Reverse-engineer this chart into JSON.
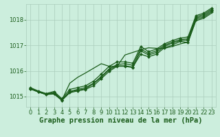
{
  "background_color": "#cceedd",
  "plot_bg_color": "#cceedd",
  "grid_color": "#aaccbb",
  "line_color": "#1a5c1a",
  "marker_color": "#1a5c1a",
  "xlabel": "Graphe pression niveau de la mer (hPa)",
  "xlabel_fontsize": 7.5,
  "tick_fontsize": 6,
  "xlim": [
    -0.5,
    23.5
  ],
  "ylim": [
    1014.6,
    1018.6
  ],
  "yticks": [
    1015,
    1016,
    1017,
    1018
  ],
  "xticks": [
    0,
    1,
    2,
    3,
    4,
    5,
    6,
    7,
    8,
    9,
    10,
    11,
    12,
    13,
    14,
    15,
    16,
    17,
    18,
    19,
    20,
    21,
    22,
    23
  ],
  "series": [
    {
      "y": [
        1015.3,
        1015.2,
        1015.1,
        1015.15,
        1014.87,
        1015.18,
        1015.25,
        1015.3,
        1015.5,
        1015.75,
        1016.05,
        1016.2,
        1016.2,
        1016.15,
        1016.65,
        1016.55,
        1016.65,
        1016.9,
        1017.0,
        1017.15,
        1017.1,
        1018.0,
        1018.1,
        1018.3
      ],
      "lw": 0.9,
      "marker": "D",
      "ms": 2.0,
      "has_markers": true
    },
    {
      "y": [
        1015.3,
        1015.18,
        1015.08,
        1015.1,
        1014.85,
        1015.15,
        1015.22,
        1015.28,
        1015.42,
        1015.7,
        1015.98,
        1016.18,
        1016.18,
        1016.13,
        1016.78,
        1016.62,
        1016.72,
        1016.95,
        1017.08,
        1017.18,
        1017.2,
        1018.05,
        1018.15,
        1018.35
      ],
      "lw": 0.9,
      "marker": "D",
      "ms": 2.0,
      "has_markers": true
    },
    {
      "y": [
        1015.32,
        1015.2,
        1015.1,
        1015.15,
        1014.88,
        1015.2,
        1015.28,
        1015.35,
        1015.52,
        1015.78,
        1016.08,
        1016.25,
        1016.28,
        1016.22,
        1016.85,
        1016.68,
        1016.78,
        1017.0,
        1017.12,
        1017.22,
        1017.25,
        1018.1,
        1018.2,
        1018.4
      ],
      "lw": 0.9,
      "marker": "D",
      "ms": 2.0,
      "has_markers": true
    },
    {
      "y": [
        1015.35,
        1015.22,
        1015.12,
        1015.2,
        1014.92,
        1015.28,
        1015.35,
        1015.42,
        1015.6,
        1015.88,
        1016.18,
        1016.35,
        1016.35,
        1016.3,
        1016.95,
        1016.75,
        1016.85,
        1017.05,
        1017.18,
        1017.28,
        1017.32,
        1018.15,
        1018.25,
        1018.45
      ],
      "lw": 0.9,
      "marker": "D",
      "ms": 2.0,
      "has_markers": true
    },
    {
      "y": [
        1015.3,
        1015.18,
        1015.08,
        1015.12,
        1014.86,
        1015.52,
        1015.75,
        1015.92,
        1016.1,
        1016.28,
        1016.18,
        1016.18,
        1016.62,
        1016.72,
        1016.82,
        1016.9,
        1016.88,
        1016.88,
        1016.95,
        1017.05,
        1017.12,
        1017.95,
        1018.05,
        1018.25
      ],
      "lw": 0.9,
      "marker": "D",
      "ms": 2.0,
      "has_markers": false
    }
  ]
}
